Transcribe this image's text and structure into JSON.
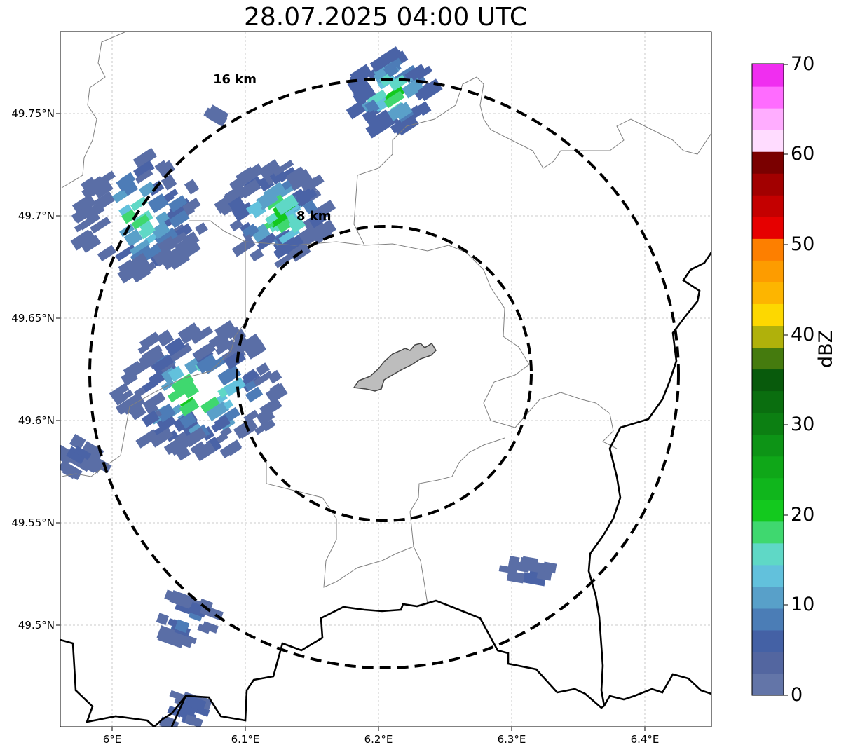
{
  "title": "28.07.2025 04:00 UTC",
  "range_rings": [
    {
      "label": "16 km",
      "radius_km": 16
    },
    {
      "label": "8 km",
      "radius_km": 8
    }
  ],
  "lat_labels": [
    "49.75°N",
    "49.7°N",
    "49.65°N",
    "49.6°N",
    "49.55°N",
    "49.5°N"
  ],
  "lon_labels": [
    "6°E",
    "6.1°E",
    "6.2°E",
    "6.3°E",
    "6.4°E"
  ],
  "colorbar": {
    "label": "dBZ",
    "ticks": [
      "0",
      "10",
      "20",
      "30",
      "40",
      "50",
      "60",
      "70"
    ],
    "colors": [
      "#6375a8",
      "#5366a0",
      "#4461a5",
      "#4b7db6",
      "#58a0c9",
      "#62c1dc",
      "#5fd8c6",
      "#3fd86f",
      "#13c91e",
      "#10b61c",
      "#0fa718",
      "#0d9416",
      "#0c7f12",
      "#0a6e0f",
      "#085a0c",
      "#457b0e",
      "#b0b10b",
      "#fdd800",
      "#fdb500",
      "#fd9c00",
      "#fd7f00",
      "#e60000",
      "#c40000",
      "#a20000",
      "#7a0000",
      "#ffdcff",
      "#ffadff",
      "#ff6cff",
      "#f02ef0"
    ]
  }
}
